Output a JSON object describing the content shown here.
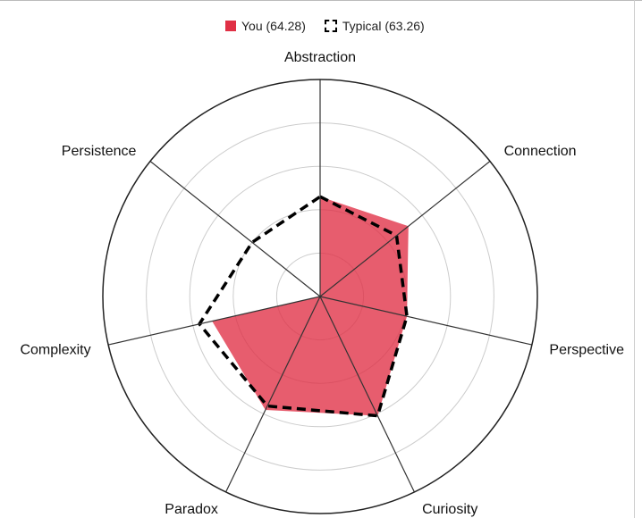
{
  "legend": {
    "you": "You (64.28)",
    "typical": "Typical (63.26)"
  },
  "colors": {
    "you_fill": "#e03045",
    "typical_stroke": "#000000",
    "outer_ring": "#222222",
    "inner_ring": "#cccccc"
  },
  "chart_data": {
    "type": "radar",
    "title": "",
    "rmax": 100,
    "rings": 4,
    "grid": true,
    "legend_position": "top-center",
    "axes": [
      "Abstraction",
      "Connection",
      "Perspective",
      "Curiosity",
      "Paradox",
      "Complexity",
      "Persistence"
    ],
    "series": [
      {
        "name": "You",
        "score": 64.28,
        "style": "filled",
        "values": {
          "Abstraction": 46,
          "Connection": 52,
          "Perspective": 41,
          "Curiosity": 61,
          "Paradox": 58,
          "Complexity": 51,
          "Persistence": 0
        }
      },
      {
        "name": "Typical",
        "score": 63.26,
        "style": "dashed",
        "values": {
          "Abstraction": 46,
          "Connection": 45,
          "Perspective": 41,
          "Curiosity": 61,
          "Paradox": 56,
          "Complexity": 57,
          "Persistence": 40
        }
      }
    ]
  }
}
